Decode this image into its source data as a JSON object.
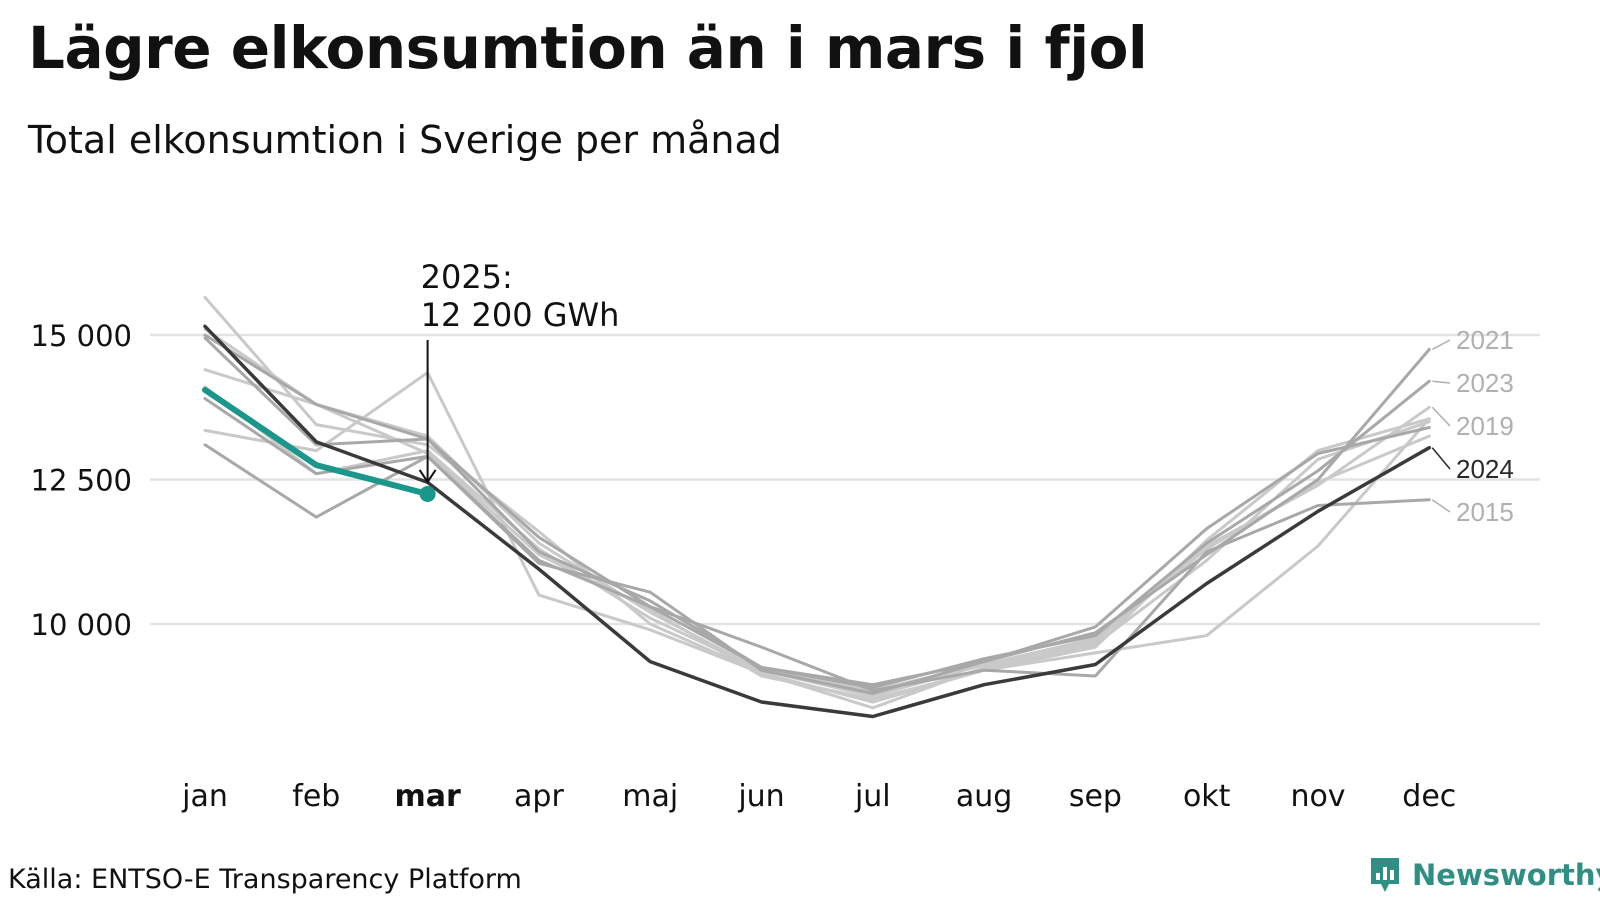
{
  "title": "Lägre elkonsumtion än i mars i fjol",
  "subtitle": "Total elkonsumtion i Sverige per månad",
  "source": "Källa: ENTSO-E Transparency Platform",
  "brand": "Newsworthy",
  "colors": {
    "highlight": "#1a968a",
    "dark": "#3a3a3a",
    "grey_dark": "#a8a8a8",
    "grey_light": "#c9c9c9",
    "grid": "#e3e3e3",
    "brand": "#2f8f85"
  },
  "chart_data": {
    "type": "line",
    "title": "Lägre elkonsumtion än i mars i fjol",
    "subtitle": "Total elkonsumtion i Sverige per månad",
    "xlabel": "",
    "ylabel": "",
    "categories": [
      "jan",
      "feb",
      "mar",
      "apr",
      "maj",
      "jun",
      "jul",
      "aug",
      "sep",
      "okt",
      "nov",
      "dec"
    ],
    "highlight_category": "mar",
    "ylim": [
      7800,
      16500
    ],
    "yticks": [
      10000,
      12500,
      15000
    ],
    "ytick_labels": [
      "10 000",
      "12 500",
      "15 000"
    ],
    "grid": "horizontal",
    "annotation": {
      "category": "mar",
      "lines": [
        "2025:",
        "12 200 GWh"
      ]
    },
    "series": [
      {
        "name": "2025",
        "role": "highlight",
        "values": [
          14050,
          12750,
          12250,
          null,
          null,
          null,
          null,
          null,
          null,
          null,
          null,
          null
        ]
      },
      {
        "name": "2024",
        "role": "dark",
        "label": "2024",
        "values": [
          15150,
          13150,
          12450,
          10950,
          9350,
          8650,
          8400,
          8950,
          9300,
          10700,
          11950,
          13050
        ]
      },
      {
        "name": "2021",
        "role": "grey_dark",
        "label": "2021",
        "values": [
          15000,
          13800,
          13200,
          11500,
          10300,
          9250,
          8950,
          9350,
          9850,
          11200,
          12500,
          14750
        ]
      },
      {
        "name": "2023",
        "role": "grey_dark",
        "label": "2023",
        "values": [
          14950,
          13100,
          13200,
          11250,
          10400,
          9250,
          8900,
          9400,
          9800,
          11400,
          12650,
          14200
        ]
      },
      {
        "name": "2019",
        "role": "grey_light",
        "label": "2019",
        "values": [
          14400,
          13800,
          13250,
          11400,
          10200,
          9200,
          8750,
          9300,
          9700,
          11350,
          12400,
          13750
        ]
      },
      {
        "name": "2015",
        "role": "grey_dark",
        "label": "2015",
        "values": [
          13100,
          11850,
          12900,
          11100,
          10300,
          9600,
          8850,
          9200,
          9100,
          11250,
          12050,
          12150
        ]
      },
      {
        "name": "",
        "role": "grey_light",
        "values": [
          15650,
          13450,
          13100,
          11600,
          10000,
          9150,
          8650,
          9200,
          9500,
          9800,
          11350,
          13550
        ]
      },
      {
        "name": "",
        "role": "grey_light",
        "values": [
          13350,
          13000,
          14350,
          10500,
          9900,
          9150,
          8550,
          9250,
          9650,
          11100,
          12850,
          13500
        ]
      },
      {
        "name": "",
        "role": "grey_light",
        "values": [
          14100,
          12600,
          13000,
          11300,
          10100,
          9200,
          8850,
          9300,
          9750,
          11300,
          12450,
          13250
        ]
      },
      {
        "name": "",
        "role": "grey_dark",
        "values": [
          13900,
          12600,
          12900,
          11050,
          10550,
          9200,
          8800,
          9350,
          9950,
          11650,
          12950,
          13400
        ]
      },
      {
        "name": "",
        "role": "grey_light",
        "values": [
          15100,
          13800,
          12950,
          11200,
          10250,
          9100,
          8700,
          9200,
          9600,
          11450,
          13000,
          13550
        ]
      }
    ]
  }
}
